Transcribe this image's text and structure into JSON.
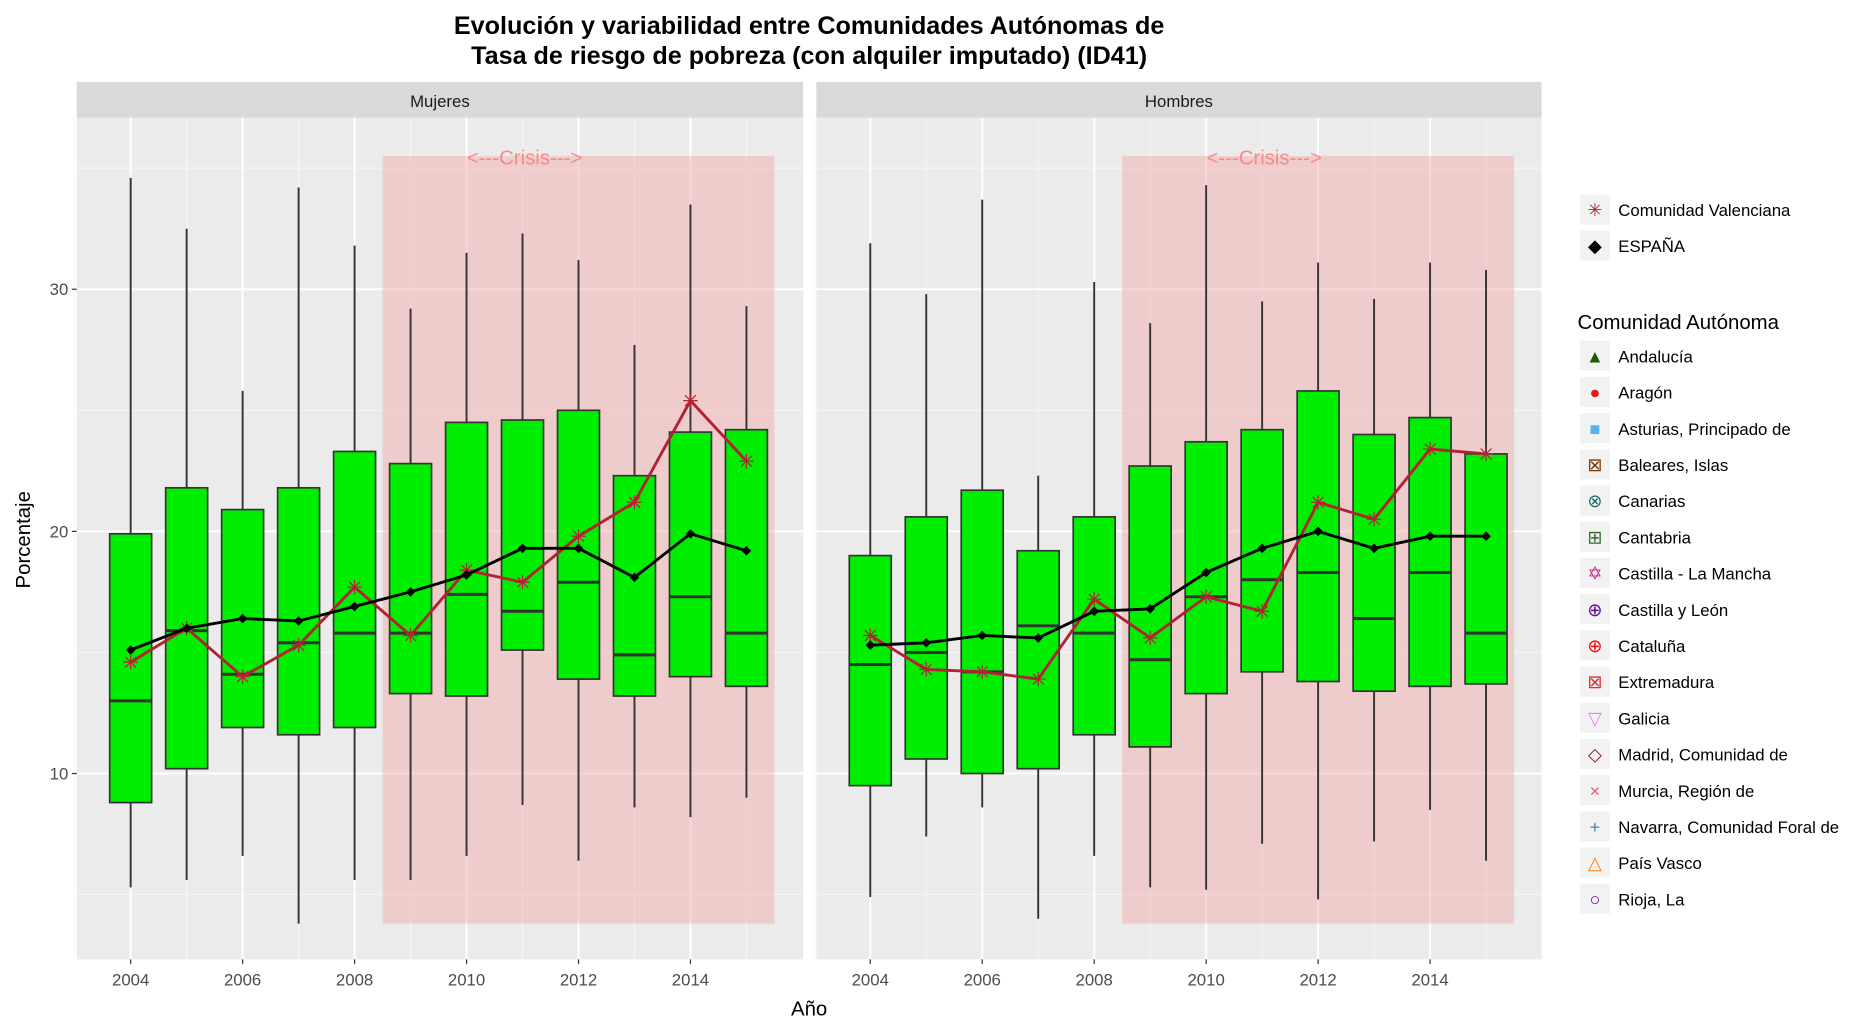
{
  "chart_data": {
    "type": "box",
    "title_line1": "Evolución y variabilidad entre Comunidades Autónomas de",
    "title_line2": "Tasa de riesgo de pobreza (con alquiler imputado) (ID41)",
    "xlabel": "Año",
    "ylabel": "Porcentaje",
    "ylim": [
      2,
      38
    ],
    "xlim": [
      2002.8,
      2016.2
    ],
    "yticks": [
      10,
      20,
      30
    ],
    "xticks": [
      2004,
      2006,
      2008,
      2010,
      2012,
      2014
    ],
    "years": [
      2004,
      2005,
      2006,
      2007,
      2008,
      2009,
      2010,
      2011,
      2012,
      2013,
      2014,
      2015
    ],
    "crisis": {
      "label": "<---Crisis--->",
      "from": 2008.5,
      "to": 2015.5,
      "ymin": 3.8,
      "ymax": 35.5,
      "color": "#f4a6a6"
    },
    "box_color": "#00ee00",
    "panels": [
      {
        "label": "Mujeres",
        "boxes": [
          {
            "min": 5.3,
            "q1": 8.8,
            "median": 13.0,
            "q3": 19.9,
            "max": 34.6
          },
          {
            "min": 5.6,
            "q1": 10.2,
            "median": 15.9,
            "q3": 21.8,
            "max": 32.5
          },
          {
            "min": 6.6,
            "q1": 11.9,
            "median": 14.1,
            "q3": 20.9,
            "max": 25.8
          },
          {
            "min": 3.8,
            "q1": 11.6,
            "median": 15.4,
            "q3": 21.8,
            "max": 34.2
          },
          {
            "min": 5.6,
            "q1": 11.9,
            "median": 15.8,
            "q3": 23.3,
            "max": 31.8
          },
          {
            "min": 5.6,
            "q1": 13.3,
            "median": 15.8,
            "q3": 22.8,
            "max": 29.2
          },
          {
            "min": 6.6,
            "q1": 13.2,
            "median": 17.4,
            "q3": 24.5,
            "max": 31.5
          },
          {
            "min": 8.7,
            "q1": 15.1,
            "median": 16.7,
            "q3": 24.6,
            "max": 32.3
          },
          {
            "min": 6.4,
            "q1": 13.9,
            "median": 17.9,
            "q3": 25.0,
            "max": 31.2
          },
          {
            "min": 8.6,
            "q1": 13.2,
            "median": 14.9,
            "q3": 22.3,
            "max": 27.7
          },
          {
            "min": 8.2,
            "q1": 14.0,
            "median": 17.3,
            "q3": 24.1,
            "max": 33.5
          },
          {
            "min": 9.0,
            "q1": 13.6,
            "median": 15.8,
            "q3": 24.2,
            "max": 29.3
          }
        ],
        "espana": [
          15.1,
          16.0,
          16.4,
          16.3,
          16.9,
          17.5,
          18.2,
          19.3,
          19.3,
          18.1,
          19.9,
          19.2
        ],
        "valenciana": [
          14.6,
          16.0,
          14.0,
          15.3,
          17.7,
          15.7,
          18.4,
          17.9,
          19.8,
          21.2,
          25.4,
          22.9
        ]
      },
      {
        "label": "Hombres",
        "boxes": [
          {
            "min": 4.9,
            "q1": 9.5,
            "median": 14.5,
            "q3": 19.0,
            "max": 31.9
          },
          {
            "min": 7.4,
            "q1": 10.6,
            "median": 15.0,
            "q3": 20.6,
            "max": 29.8
          },
          {
            "min": 8.6,
            "q1": 10.0,
            "median": 14.2,
            "q3": 21.7,
            "max": 33.7
          },
          {
            "min": 4.0,
            "q1": 10.2,
            "median": 16.1,
            "q3": 19.2,
            "max": 22.3
          },
          {
            "min": 6.6,
            "q1": 11.6,
            "median": 15.8,
            "q3": 20.6,
            "max": 30.3
          },
          {
            "min": 5.3,
            "q1": 11.1,
            "median": 14.7,
            "q3": 22.7,
            "max": 28.6
          },
          {
            "min": 5.2,
            "q1": 13.3,
            "median": 17.3,
            "q3": 23.7,
            "max": 34.3
          },
          {
            "min": 7.1,
            "q1": 14.2,
            "median": 18.0,
            "q3": 24.2,
            "max": 29.5
          },
          {
            "min": 4.8,
            "q1": 13.8,
            "median": 18.3,
            "q3": 25.8,
            "max": 31.1
          },
          {
            "min": 7.2,
            "q1": 13.4,
            "median": 16.4,
            "q3": 24.0,
            "max": 29.6
          },
          {
            "min": 8.5,
            "q1": 13.6,
            "median": 18.3,
            "q3": 24.7,
            "max": 31.1
          },
          {
            "min": 6.4,
            "q1": 13.7,
            "median": 15.8,
            "q3": 23.2,
            "max": 30.8
          }
        ],
        "espana": [
          15.3,
          15.4,
          15.7,
          15.6,
          16.7,
          16.8,
          18.3,
          19.3,
          20.0,
          19.3,
          19.8,
          19.8
        ],
        "valenciana": [
          15.7,
          14.3,
          14.2,
          13.9,
          17.2,
          15.6,
          17.3,
          16.7,
          21.2,
          20.5,
          23.4,
          23.2
        ]
      }
    ],
    "legend_lines": [
      {
        "label": "Comunidad Valenciana",
        "symbol": "✳",
        "color": "#b22234"
      },
      {
        "label": "ESPAÑA",
        "symbol": "◆",
        "color": "#000000"
      }
    ],
    "legend_title": "Comunidad Autónoma",
    "legend_items": [
      {
        "label": "Andalucía",
        "symbol": "▲",
        "color": "#1b5e00"
      },
      {
        "label": "Aragón",
        "symbol": "●",
        "color": "#e41a1c"
      },
      {
        "label": "Asturias, Principado de",
        "symbol": "■",
        "color": "#56b4e9"
      },
      {
        "label": "Baleares, Islas",
        "symbol": "⊠",
        "color": "#7a3b00"
      },
      {
        "label": "Canarias",
        "symbol": "⊗",
        "color": "#1f6b6b"
      },
      {
        "label": "Cantabria",
        "symbol": "⊞",
        "color": "#2e6b2e"
      },
      {
        "label": "Castilla - La Mancha",
        "symbol": "✡",
        "color": "#d01c8b"
      },
      {
        "label": "Castilla y León",
        "symbol": "⊕",
        "color": "#5b0099"
      },
      {
        "label": "Cataluña",
        "symbol": "⊕",
        "color": "#ff0000"
      },
      {
        "label": "Extremadura",
        "symbol": "⊠",
        "color": "#e03030"
      },
      {
        "label": "Galicia",
        "symbol": "▽",
        "color": "#ee82ee"
      },
      {
        "label": "Madrid, Comunidad de",
        "symbol": "◇",
        "color": "#8b1a1a"
      },
      {
        "label": "Murcia, Región de",
        "symbol": "×",
        "color": "#ff4d6d"
      },
      {
        "label": "Navarra, Comunidad Foral de",
        "symbol": "+",
        "color": "#4682b4"
      },
      {
        "label": "País Vasco",
        "symbol": "△",
        "color": "#ff8000"
      },
      {
        "label": "Rioja, La",
        "symbol": "○",
        "color": "#7b00a0"
      }
    ]
  }
}
